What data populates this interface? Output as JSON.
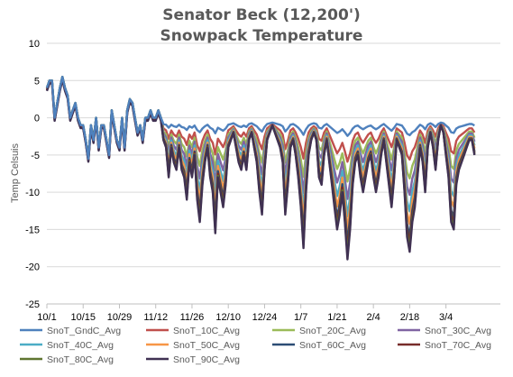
{
  "chart_data": {
    "type": "line",
    "title_line1": "Senator Beck (12,200')",
    "title_line2": "Snowpack Temperature",
    "ylabel": "Temp Celsuis",
    "xlabel": "",
    "ylim": [
      -25,
      10
    ],
    "yticks": [
      10,
      5,
      0,
      -5,
      -10,
      -15,
      -20,
      -25
    ],
    "xlim": [
      0,
      175
    ],
    "xticks": [
      {
        "x": 0,
        "label": "10/1"
      },
      {
        "x": 14,
        "label": "10/15"
      },
      {
        "x": 28,
        "label": "10/29"
      },
      {
        "x": 42,
        "label": "11/12"
      },
      {
        "x": 56,
        "label": "11/26"
      },
      {
        "x": 70,
        "label": "12/10"
      },
      {
        "x": 84,
        "label": "12/24"
      },
      {
        "x": 98,
        "label": "1/7"
      },
      {
        "x": 112,
        "label": "1/21"
      },
      {
        "x": 126,
        "label": "2/4"
      },
      {
        "x": 140,
        "label": "2/18"
      },
      {
        "x": 154,
        "label": "3/4"
      }
    ],
    "grid": "horizontal",
    "legend_position": "bottom",
    "series": [
      {
        "name": "SnoT_GndC_Avg",
        "color": "#4F81BD",
        "amp": 0.1,
        "cap": -0.6,
        "floor": -5
      },
      {
        "name": "SnoT_10C_Avg",
        "color": "#C0504D",
        "amp": 0.28,
        "cap": -0.8,
        "floor": -9
      },
      {
        "name": "SnoT_20C_Avg",
        "color": "#9BBB59",
        "amp": 0.42,
        "cap": -1.0,
        "floor": -12
      },
      {
        "name": "SnoT_30C_Avg",
        "color": "#8064A2",
        "amp": 0.55,
        "cap": -1.0,
        "floor": -15
      },
      {
        "name": "SnoT_40C_Avg",
        "color": "#4BACC6",
        "amp": 0.68,
        "cap": -1.0,
        "floor": -17
      },
      {
        "name": "SnoT_50C_Avg",
        "color": "#F79646",
        "amp": 0.78,
        "cap": -1.0,
        "floor": -18
      },
      {
        "name": "SnoT_60C_Avg",
        "color": "#2C4D75",
        "amp": 0.88,
        "cap": -1.0,
        "floor": -19
      },
      {
        "name": "SnoT_70C_Avg",
        "color": "#772C2A",
        "amp": 0.93,
        "cap": -1.0,
        "floor": -19
      },
      {
        "name": "SnoT_80C_Avg",
        "color": "#5F7530",
        "amp": 0.97,
        "cap": -1.0,
        "floor": -19
      },
      {
        "name": "SnoT_90C_Avg",
        "color": "#403152",
        "amp": 1.0,
        "cap": -1.0,
        "floor": -19
      }
    ],
    "air_temp_reference": [
      [
        0,
        4
      ],
      [
        1,
        5
      ],
      [
        2,
        5
      ],
      [
        3,
        0
      ],
      [
        4,
        2
      ],
      [
        5,
        4
      ],
      [
        6,
        5.5
      ],
      [
        7,
        4
      ],
      [
        8,
        3
      ],
      [
        9,
        0
      ],
      [
        10,
        1
      ],
      [
        11,
        2
      ],
      [
        12,
        0
      ],
      [
        13,
        -1
      ],
      [
        14,
        -1
      ],
      [
        15,
        -3
      ],
      [
        16,
        -5.5
      ],
      [
        17,
        -1
      ],
      [
        18,
        -3
      ],
      [
        19,
        0
      ],
      [
        20,
        -4
      ],
      [
        21,
        -1
      ],
      [
        22,
        -1
      ],
      [
        23,
        -3
      ],
      [
        24,
        -5
      ],
      [
        25,
        1
      ],
      [
        26,
        -1
      ],
      [
        27,
        -3
      ],
      [
        28,
        -4
      ],
      [
        29,
        0
      ],
      [
        30,
        -4
      ],
      [
        31,
        1
      ],
      [
        32,
        2.5
      ],
      [
        33,
        2
      ],
      [
        34,
        0
      ],
      [
        35,
        -2
      ],
      [
        36,
        -1
      ],
      [
        37,
        -3
      ],
      [
        38,
        0
      ],
      [
        39,
        0
      ],
      [
        40,
        1
      ],
      [
        41,
        0
      ],
      [
        42,
        0
      ],
      [
        43,
        1
      ],
      [
        44,
        0
      ],
      [
        45,
        -3
      ],
      [
        46,
        -4
      ],
      [
        47,
        -8
      ],
      [
        48,
        -4
      ],
      [
        49,
        -6
      ],
      [
        50,
        -7
      ],
      [
        51,
        -4
      ],
      [
        52,
        -7
      ],
      [
        53,
        -8
      ],
      [
        54,
        -11
      ],
      [
        55,
        -6
      ],
      [
        56,
        -8
      ],
      [
        57,
        -5
      ],
      [
        58,
        -11
      ],
      [
        59,
        -14
      ],
      [
        60,
        -9
      ],
      [
        61,
        -6
      ],
      [
        62,
        -4
      ],
      [
        63,
        -8
      ],
      [
        64,
        -10
      ],
      [
        65,
        -15.5
      ],
      [
        66,
        -8
      ],
      [
        67,
        -10
      ],
      [
        68,
        -12
      ],
      [
        69,
        -9
      ],
      [
        70,
        -4
      ],
      [
        71,
        -3
      ],
      [
        72,
        -2
      ],
      [
        73,
        -4
      ],
      [
        74,
        -6
      ],
      [
        75,
        -7
      ],
      [
        76,
        -5
      ],
      [
        77,
        -7
      ],
      [
        78,
        -3
      ],
      [
        79,
        -2
      ],
      [
        80,
        -4
      ],
      [
        81,
        -6
      ],
      [
        82,
        -10
      ],
      [
        83,
        -13
      ],
      [
        84,
        -7
      ],
      [
        85,
        -3
      ],
      [
        86,
        -2
      ],
      [
        87,
        -1
      ],
      [
        88,
        -2
      ],
      [
        89,
        -3
      ],
      [
        90,
        -4
      ],
      [
        91,
        -6
      ],
      [
        92,
        -13
      ],
      [
        93,
        -9
      ],
      [
        94,
        -4
      ],
      [
        95,
        -3
      ],
      [
        96,
        -5
      ],
      [
        97,
        -8
      ],
      [
        98,
        -12
      ],
      [
        99,
        -17.5
      ],
      [
        100,
        -10
      ],
      [
        101,
        -5
      ],
      [
        102,
        -3
      ],
      [
        103,
        -2
      ],
      [
        104,
        -3
      ],
      [
        105,
        -8
      ],
      [
        106,
        -9
      ],
      [
        107,
        -5
      ],
      [
        108,
        -3
      ],
      [
        109,
        -6
      ],
      [
        110,
        -9
      ],
      [
        111,
        -12
      ],
      [
        112,
        -15
      ],
      [
        113,
        -13
      ],
      [
        114,
        -10
      ],
      [
        115,
        -14
      ],
      [
        116,
        -19
      ],
      [
        117,
        -15
      ],
      [
        118,
        -9
      ],
      [
        119,
        -6
      ],
      [
        120,
        -5
      ],
      [
        121,
        -8
      ],
      [
        122,
        -10
      ],
      [
        123,
        -8
      ],
      [
        124,
        -6
      ],
      [
        125,
        -5
      ],
      [
        126,
        -8
      ],
      [
        127,
        -10
      ],
      [
        128,
        -8
      ],
      [
        129,
        -5
      ],
      [
        130,
        -3
      ],
      [
        131,
        -6
      ],
      [
        132,
        -9
      ],
      [
        133,
        -12
      ],
      [
        134,
        -8
      ],
      [
        135,
        -3
      ],
      [
        136,
        -4
      ],
      [
        137,
        -5
      ],
      [
        138,
        -10
      ],
      [
        139,
        -16
      ],
      [
        140,
        -18
      ],
      [
        141,
        -14
      ],
      [
        142,
        -12
      ],
      [
        143,
        -8
      ],
      [
        144,
        -4
      ],
      [
        145,
        -6
      ],
      [
        146,
        -10
      ],
      [
        147,
        -4
      ],
      [
        148,
        -2
      ],
      [
        149,
        -4
      ],
      [
        150,
        -7
      ],
      [
        151,
        -3
      ],
      [
        152,
        -1
      ],
      [
        153,
        -2
      ],
      [
        154,
        -5
      ],
      [
        155,
        -8
      ],
      [
        156,
        -14
      ],
      [
        157,
        -15
      ],
      [
        158,
        -9
      ],
      [
        159,
        -7
      ],
      [
        160,
        -6
      ],
      [
        161,
        -5
      ],
      [
        162,
        -4
      ],
      [
        163,
        -3
      ],
      [
        164,
        -3
      ],
      [
        165,
        -5
      ]
    ]
  }
}
